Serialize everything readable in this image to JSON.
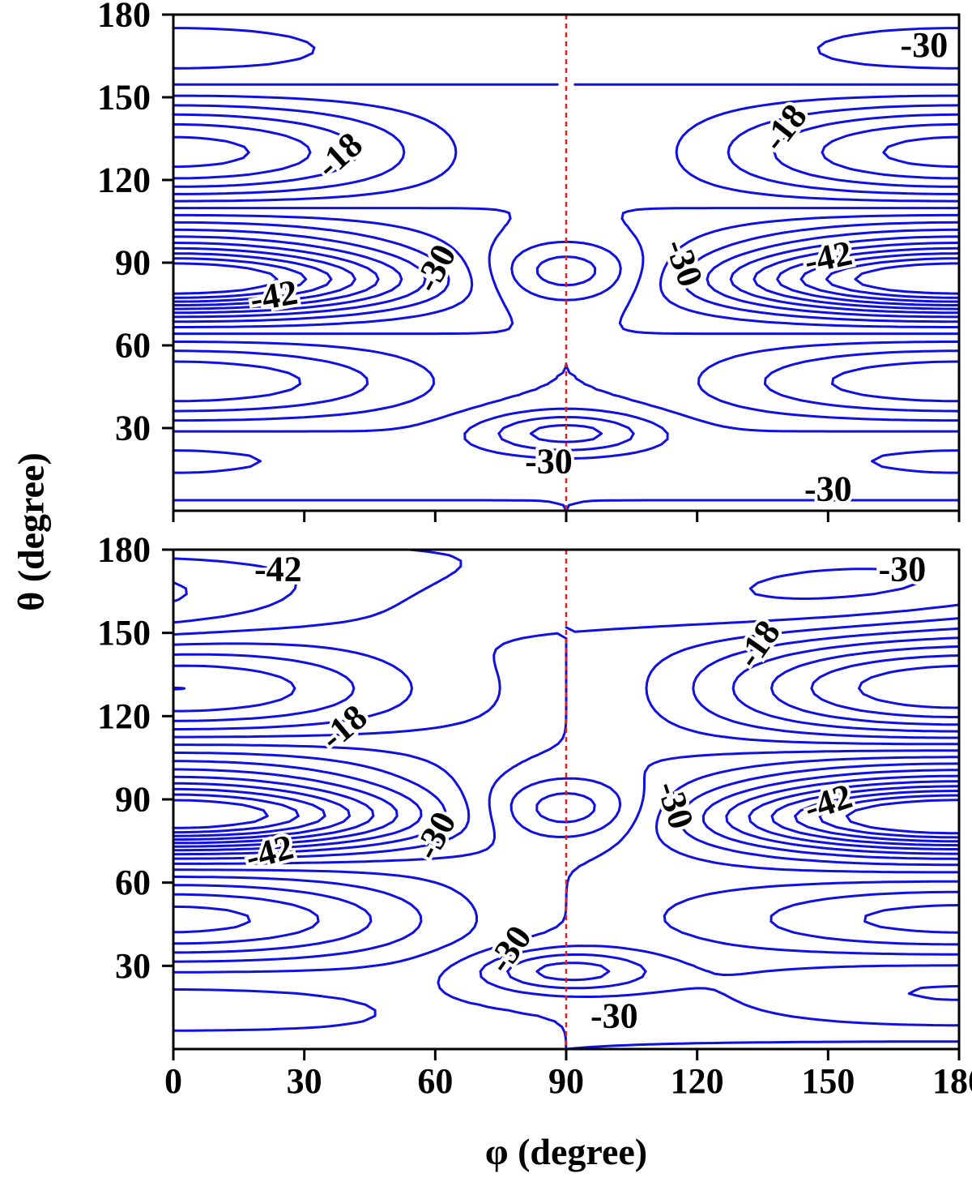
{
  "chart_data": [
    {
      "type": "contour",
      "panel": "top",
      "xlabel": "φ (degree)",
      "ylabel": "θ (degree)",
      "xlim": [
        0,
        180
      ],
      "ylim": [
        0,
        180
      ],
      "xticks": [
        0,
        30,
        60,
        90,
        120,
        150,
        180
      ],
      "yticks": [
        30,
        60,
        90,
        120,
        150,
        180
      ],
      "xtick_labels_visible": false,
      "reference_line": {
        "x": 90,
        "style": "dashed",
        "color": "#e02020"
      },
      "contour_color": "#1010e0",
      "contour_labels": [
        {
          "text": "-18",
          "x": 38,
          "y": 129,
          "angle": -42
        },
        {
          "text": "-42",
          "x": 23,
          "y": 78,
          "angle": -10
        },
        {
          "text": "-30",
          "x": 60,
          "y": 88,
          "angle": -62
        },
        {
          "text": "-30",
          "x": 86,
          "y": 18,
          "angle": 0
        },
        {
          "text": "-30",
          "x": 172,
          "y": 169,
          "angle": 0
        },
        {
          "text": "-18",
          "x": 140,
          "y": 139,
          "angle": -52
        },
        {
          "text": "-30",
          "x": 117,
          "y": 90,
          "angle": 70
        },
        {
          "text": "-42",
          "x": 150,
          "y": 92,
          "angle": -12
        },
        {
          "text": "-30",
          "x": 150,
          "y": 8,
          "angle": 0
        }
      ]
    },
    {
      "type": "contour",
      "panel": "bottom",
      "xlabel": "φ (degree)",
      "ylabel": "θ (degree)",
      "xlim": [
        0,
        180
      ],
      "ylim": [
        0,
        180
      ],
      "xticks": [
        0,
        30,
        60,
        90,
        120,
        150,
        180
      ],
      "yticks": [
        30,
        60,
        90,
        120,
        150,
        180
      ],
      "reference_line": {
        "x": 90,
        "style": "dashed",
        "color": "#e02020"
      },
      "contour_color": "#1010e0",
      "contour_labels": [
        {
          "text": "-42",
          "x": 24,
          "y": 173,
          "angle": 0
        },
        {
          "text": "-30",
          "x": 167,
          "y": 173,
          "angle": 0
        },
        {
          "text": "-18",
          "x": 134,
          "y": 146,
          "angle": -55
        },
        {
          "text": "-18",
          "x": 39,
          "y": 116,
          "angle": -40
        },
        {
          "text": "-30",
          "x": 115,
          "y": 88,
          "angle": 72
        },
        {
          "text": "-42",
          "x": 150,
          "y": 89,
          "angle": -18
        },
        {
          "text": "-30",
          "x": 60,
          "y": 77,
          "angle": -62
        },
        {
          "text": "-42",
          "x": 22,
          "y": 71,
          "angle": -15
        },
        {
          "text": "-30",
          "x": 77,
          "y": 36,
          "angle": -55
        },
        {
          "text": "-30",
          "x": 101,
          "y": 12,
          "angle": 0
        }
      ]
    }
  ]
}
